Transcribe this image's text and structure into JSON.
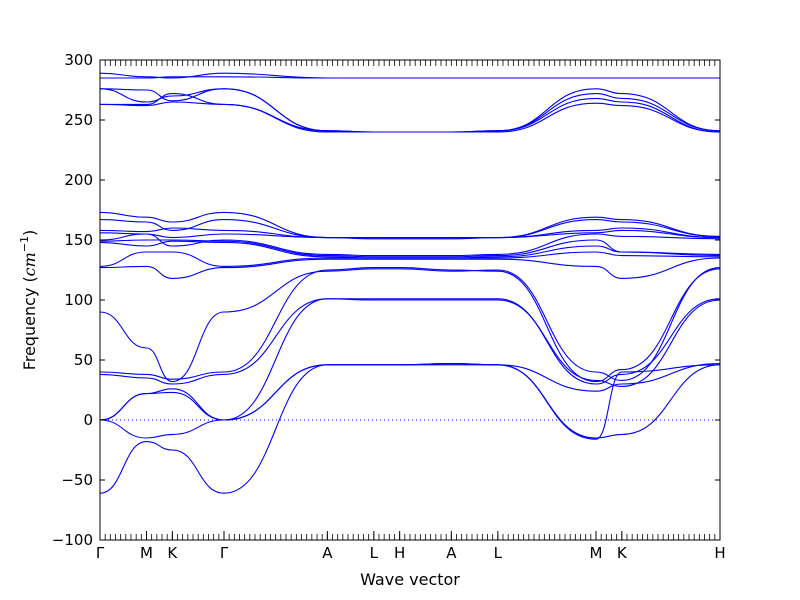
{
  "chart_data": {
    "type": "line",
    "title": "",
    "xlabel": "Wave vector",
    "ylabel": "Frequency ($cm^{-1}$)",
    "ylabel_main": "Frequency (",
    "ylabel_unit": "cm",
    "ylabel_exp": "−1",
    "ylabel_close": ")",
    "ylim": [
      -100,
      300
    ],
    "xlim": [
      0,
      24
    ],
    "yticks": [
      -100,
      -50,
      0,
      50,
      100,
      150,
      200,
      250,
      300
    ],
    "ytick_labels": [
      "−100",
      "−50",
      "0",
      "50",
      "100",
      "150",
      "200",
      "250",
      "300"
    ],
    "xticks": [
      {
        "x": 0,
        "label": "Γ"
      },
      {
        "x": 1.8,
        "label": "M"
      },
      {
        "x": 2.8,
        "label": "K"
      },
      {
        "x": 4.8,
        "label": "Γ"
      },
      {
        "x": 8.8,
        "label": "A"
      },
      {
        "x": 10.6,
        "label": "L"
      },
      {
        "x": 11.6,
        "label": "H"
      },
      {
        "x": 13.6,
        "label": "A"
      },
      {
        "x": 15.4,
        "label": "L"
      },
      {
        "x": 19.2,
        "label": "M"
      },
      {
        "x": 20.2,
        "label": "K"
      },
      {
        "x": 24,
        "label": "H"
      }
    ],
    "zero_line": true,
    "grid": false,
    "legend": "none",
    "colors": {
      "bands": "#0000ff",
      "zero_line": "#0000ff"
    },
    "series": [
      {
        "x": [
          0,
          1.8,
          2.8,
          4.8,
          8.8,
          10.6,
          11.6,
          13.6,
          15.4,
          19.2,
          20.2,
          24
        ],
        "values": [
          289,
          286,
          285,
          289,
          285,
          285,
          285,
          285,
          285,
          285,
          285,
          285
        ]
      },
      {
        "x": [
          0,
          1.8,
          2.8,
          4.8,
          8.8,
          10.6,
          11.6,
          13.6,
          15.4,
          19.2,
          20.2,
          24
        ],
        "values": [
          285,
          285,
          286,
          286,
          285,
          285,
          285,
          285,
          285,
          285,
          285,
          285
        ]
      },
      {
        "x": [
          0,
          1.8,
          2.8,
          4.8,
          8.8,
          10.6,
          11.6,
          13.6,
          15.4,
          19.2,
          20.2,
          24
        ],
        "values": [
          276,
          275,
          266,
          276,
          241,
          240,
          240,
          240,
          241,
          276,
          272,
          241
        ]
      },
      {
        "x": [
          0,
          1.8,
          2.8,
          4.8,
          8.8,
          10.6,
          11.6,
          13.6,
          15.4,
          19.2,
          20.2,
          24
        ],
        "values": [
          276,
          265,
          270,
          276,
          241,
          240,
          240,
          240,
          241,
          272,
          268,
          241
        ]
      },
      {
        "x": [
          0,
          1.8,
          2.8,
          4.8,
          8.8,
          10.6,
          11.6,
          13.6,
          15.4,
          19.2,
          20.2,
          24
        ],
        "values": [
          263,
          263,
          272,
          263,
          241,
          240,
          240,
          240,
          241,
          268,
          265,
          240
        ]
      },
      {
        "x": [
          0,
          1.8,
          2.8,
          4.8,
          8.8,
          10.6,
          11.6,
          13.6,
          15.4,
          19.2,
          20.2,
          24
        ],
        "values": [
          263,
          262,
          265,
          263,
          240,
          240,
          240,
          240,
          240,
          264,
          262,
          240
        ]
      },
      {
        "x": [
          0,
          1.8,
          2.8,
          4.8,
          8.8,
          10.6,
          11.6,
          13.6,
          15.4,
          19.2,
          20.2,
          24
        ],
        "values": [
          173,
          169,
          165,
          173,
          152,
          152,
          152,
          152,
          152,
          169,
          167,
          153
        ]
      },
      {
        "x": [
          0,
          1.8,
          2.8,
          4.8,
          8.8,
          10.6,
          11.6,
          13.6,
          15.4,
          19.2,
          20.2,
          24
        ],
        "values": [
          167,
          165,
          158,
          167,
          152,
          152,
          152,
          152,
          152,
          167,
          165,
          153
        ]
      },
      {
        "x": [
          0,
          1.8,
          2.8,
          4.8,
          8.8,
          10.6,
          11.6,
          13.6,
          15.4,
          19.2,
          20.2,
          24
        ],
        "values": [
          158,
          157,
          160,
          158,
          152,
          152,
          152,
          152,
          152,
          158,
          160,
          152
        ]
      },
      {
        "x": [
          0,
          1.8,
          2.8,
          4.8,
          8.8,
          10.6,
          11.6,
          13.6,
          15.4,
          19.2,
          20.2,
          24
        ],
        "values": [
          156,
          155,
          152,
          155,
          152,
          151,
          151,
          151,
          152,
          156,
          158,
          152
        ]
      },
      {
        "x": [
          0,
          1.8,
          2.8,
          4.8,
          8.8,
          10.6,
          11.6,
          13.6,
          15.4,
          19.2,
          20.2,
          24
        ],
        "values": [
          150,
          155,
          145,
          150,
          138,
          137,
          137,
          137,
          138,
          155,
          153,
          151
        ]
      },
      {
        "x": [
          0,
          1.8,
          2.8,
          4.8,
          8.8,
          10.6,
          11.6,
          13.6,
          15.4,
          19.2,
          20.2,
          24
        ],
        "values": [
          149,
          150,
          150,
          149,
          137,
          136,
          136,
          136,
          137,
          150,
          140,
          138
        ]
      },
      {
        "x": [
          0,
          1.8,
          2.8,
          4.8,
          8.8,
          10.6,
          11.6,
          13.6,
          15.4,
          19.2,
          20.2,
          24
        ],
        "values": [
          148,
          145,
          149,
          148,
          136,
          135,
          135,
          135,
          136,
          145,
          140,
          137
        ]
      },
      {
        "x": [
          0,
          1.8,
          2.8,
          4.8,
          8.8,
          10.6,
          11.6,
          13.6,
          15.4,
          19.2,
          20.2,
          24
        ],
        "values": [
          128,
          140,
          140,
          128,
          135,
          135,
          135,
          135,
          135,
          140,
          137,
          136
        ]
      },
      {
        "x": [
          0,
          1.8,
          2.8,
          4.8,
          8.8,
          10.6,
          11.6,
          13.6,
          15.4,
          19.2,
          20.2,
          24
        ],
        "values": [
          127,
          128,
          118,
          127,
          134,
          134,
          134,
          134,
          134,
          128,
          118,
          135
        ]
      },
      {
        "x": [
          0,
          1.8,
          2.8,
          4.8,
          8.8,
          10.6,
          11.6,
          13.6,
          15.4,
          19.2,
          20.2,
          24
        ],
        "values": [
          90,
          60,
          32,
          90,
          124,
          126,
          126,
          124,
          125,
          40,
          33,
          127
        ]
      },
      {
        "x": [
          0,
          1.8,
          2.8,
          4.8,
          8.8,
          10.6,
          11.6,
          13.6,
          15.4,
          19.2,
          20.2,
          24
        ],
        "values": [
          40,
          38,
          34,
          40,
          125,
          127,
          127,
          125,
          124,
          32,
          42,
          126
        ]
      },
      {
        "x": [
          0,
          1.8,
          2.8,
          4.8,
          8.8,
          10.6,
          11.6,
          13.6,
          15.4,
          19.2,
          20.2,
          24
        ],
        "values": [
          38,
          35,
          30,
          38,
          101,
          101,
          101,
          101,
          101,
          30,
          38,
          101
        ]
      },
      {
        "x": [
          0,
          1.8,
          2.8,
          4.8,
          8.8,
          10.6,
          11.6,
          13.6,
          15.4,
          19.2,
          20.2,
          24
        ],
        "values": [
          0,
          22,
          26,
          0,
          101,
          100,
          100,
          100,
          100,
          33,
          28,
          100
        ]
      },
      {
        "x": [
          0,
          1.8,
          2.8,
          4.8,
          8.8,
          10.6,
          11.6,
          13.6,
          15.4,
          19.2,
          20.2,
          24
        ],
        "values": [
          0,
          22,
          23,
          0,
          46,
          46,
          46,
          47,
          46,
          24,
          30,
          47
        ]
      },
      {
        "x": [
          0,
          1.8,
          2.8,
          4.8,
          8.8,
          10.6,
          11.6,
          13.6,
          15.4,
          19.2,
          20.2,
          24
        ],
        "values": [
          0,
          -15,
          -12,
          0,
          46,
          46,
          46,
          47,
          46,
          -15,
          -12,
          46
        ]
      },
      {
        "x": [
          0,
          1.8,
          2.8,
          4.8,
          8.8,
          10.6,
          11.6,
          13.6,
          15.4,
          19.2,
          20.2,
          24
        ],
        "values": [
          -61,
          -18,
          -25,
          -61,
          46,
          46,
          46,
          46,
          46,
          -16,
          40,
          46
        ]
      }
    ]
  }
}
